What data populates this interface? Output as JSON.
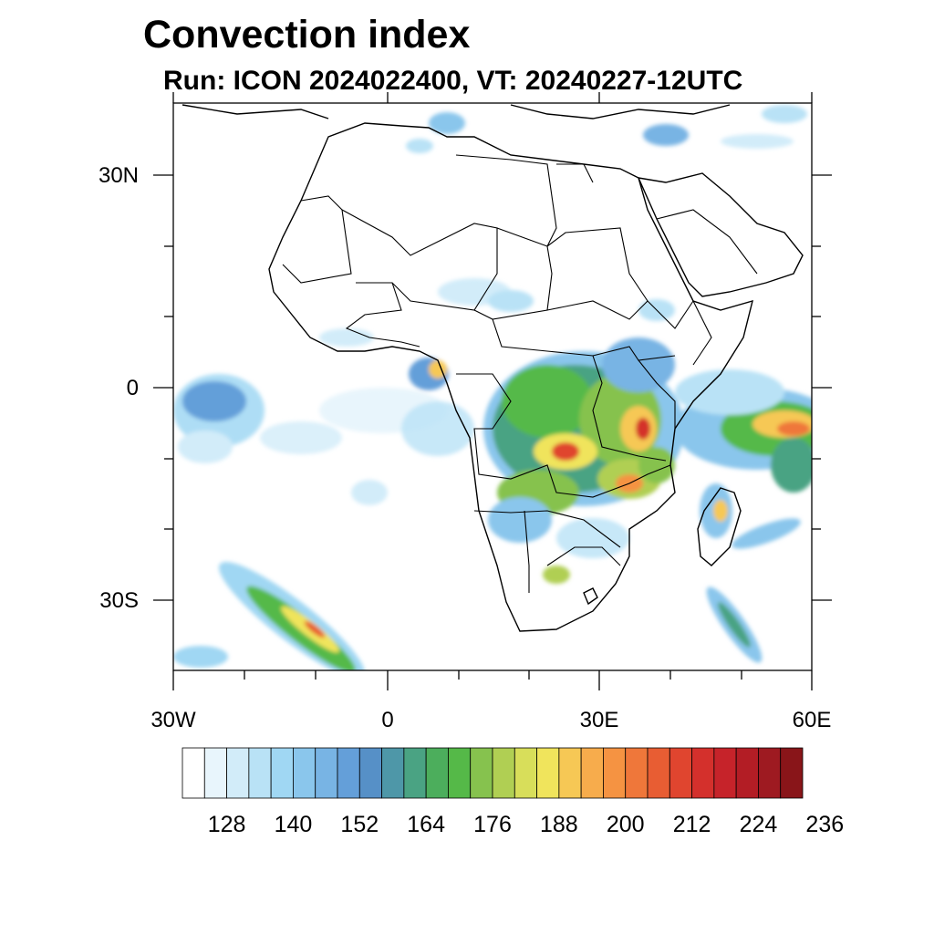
{
  "title": "Convection index",
  "subtitle": "Run: ICON 2024022400,  VT: 20240227-12UTC",
  "axes": {
    "lat_labels": [
      "30N",
      "0",
      "30S"
    ],
    "lon_labels": [
      "30W",
      "0",
      "30E",
      "60E"
    ]
  },
  "colorbar": {
    "labels": [
      "128",
      "140",
      "152",
      "164",
      "176",
      "188",
      "200",
      "212",
      "224",
      "236"
    ],
    "colors": [
      "#ffffff",
      "#e8f5fc",
      "#d2ecf9",
      "#b9e2f6",
      "#a0d7f3",
      "#8ac6ec",
      "#78b4e4",
      "#649fd9",
      "#5690c7",
      "#4e97a8",
      "#4aa383",
      "#4cae5c",
      "#55b948",
      "#86c24e",
      "#b0cf53",
      "#d8de5a",
      "#f0e45c",
      "#f6c855",
      "#f7ac4c",
      "#f59342",
      "#ef773a",
      "#e85d33",
      "#e0452f",
      "#d4302c",
      "#c6232a",
      "#b31d25",
      "#9e1a21",
      "#891519"
    ]
  },
  "colors": {
    "land_outline": "#000000",
    "low": "#a0d7f3",
    "mid": "#4aa383",
    "high": "#f0e45c",
    "max": "#d4302c"
  }
}
